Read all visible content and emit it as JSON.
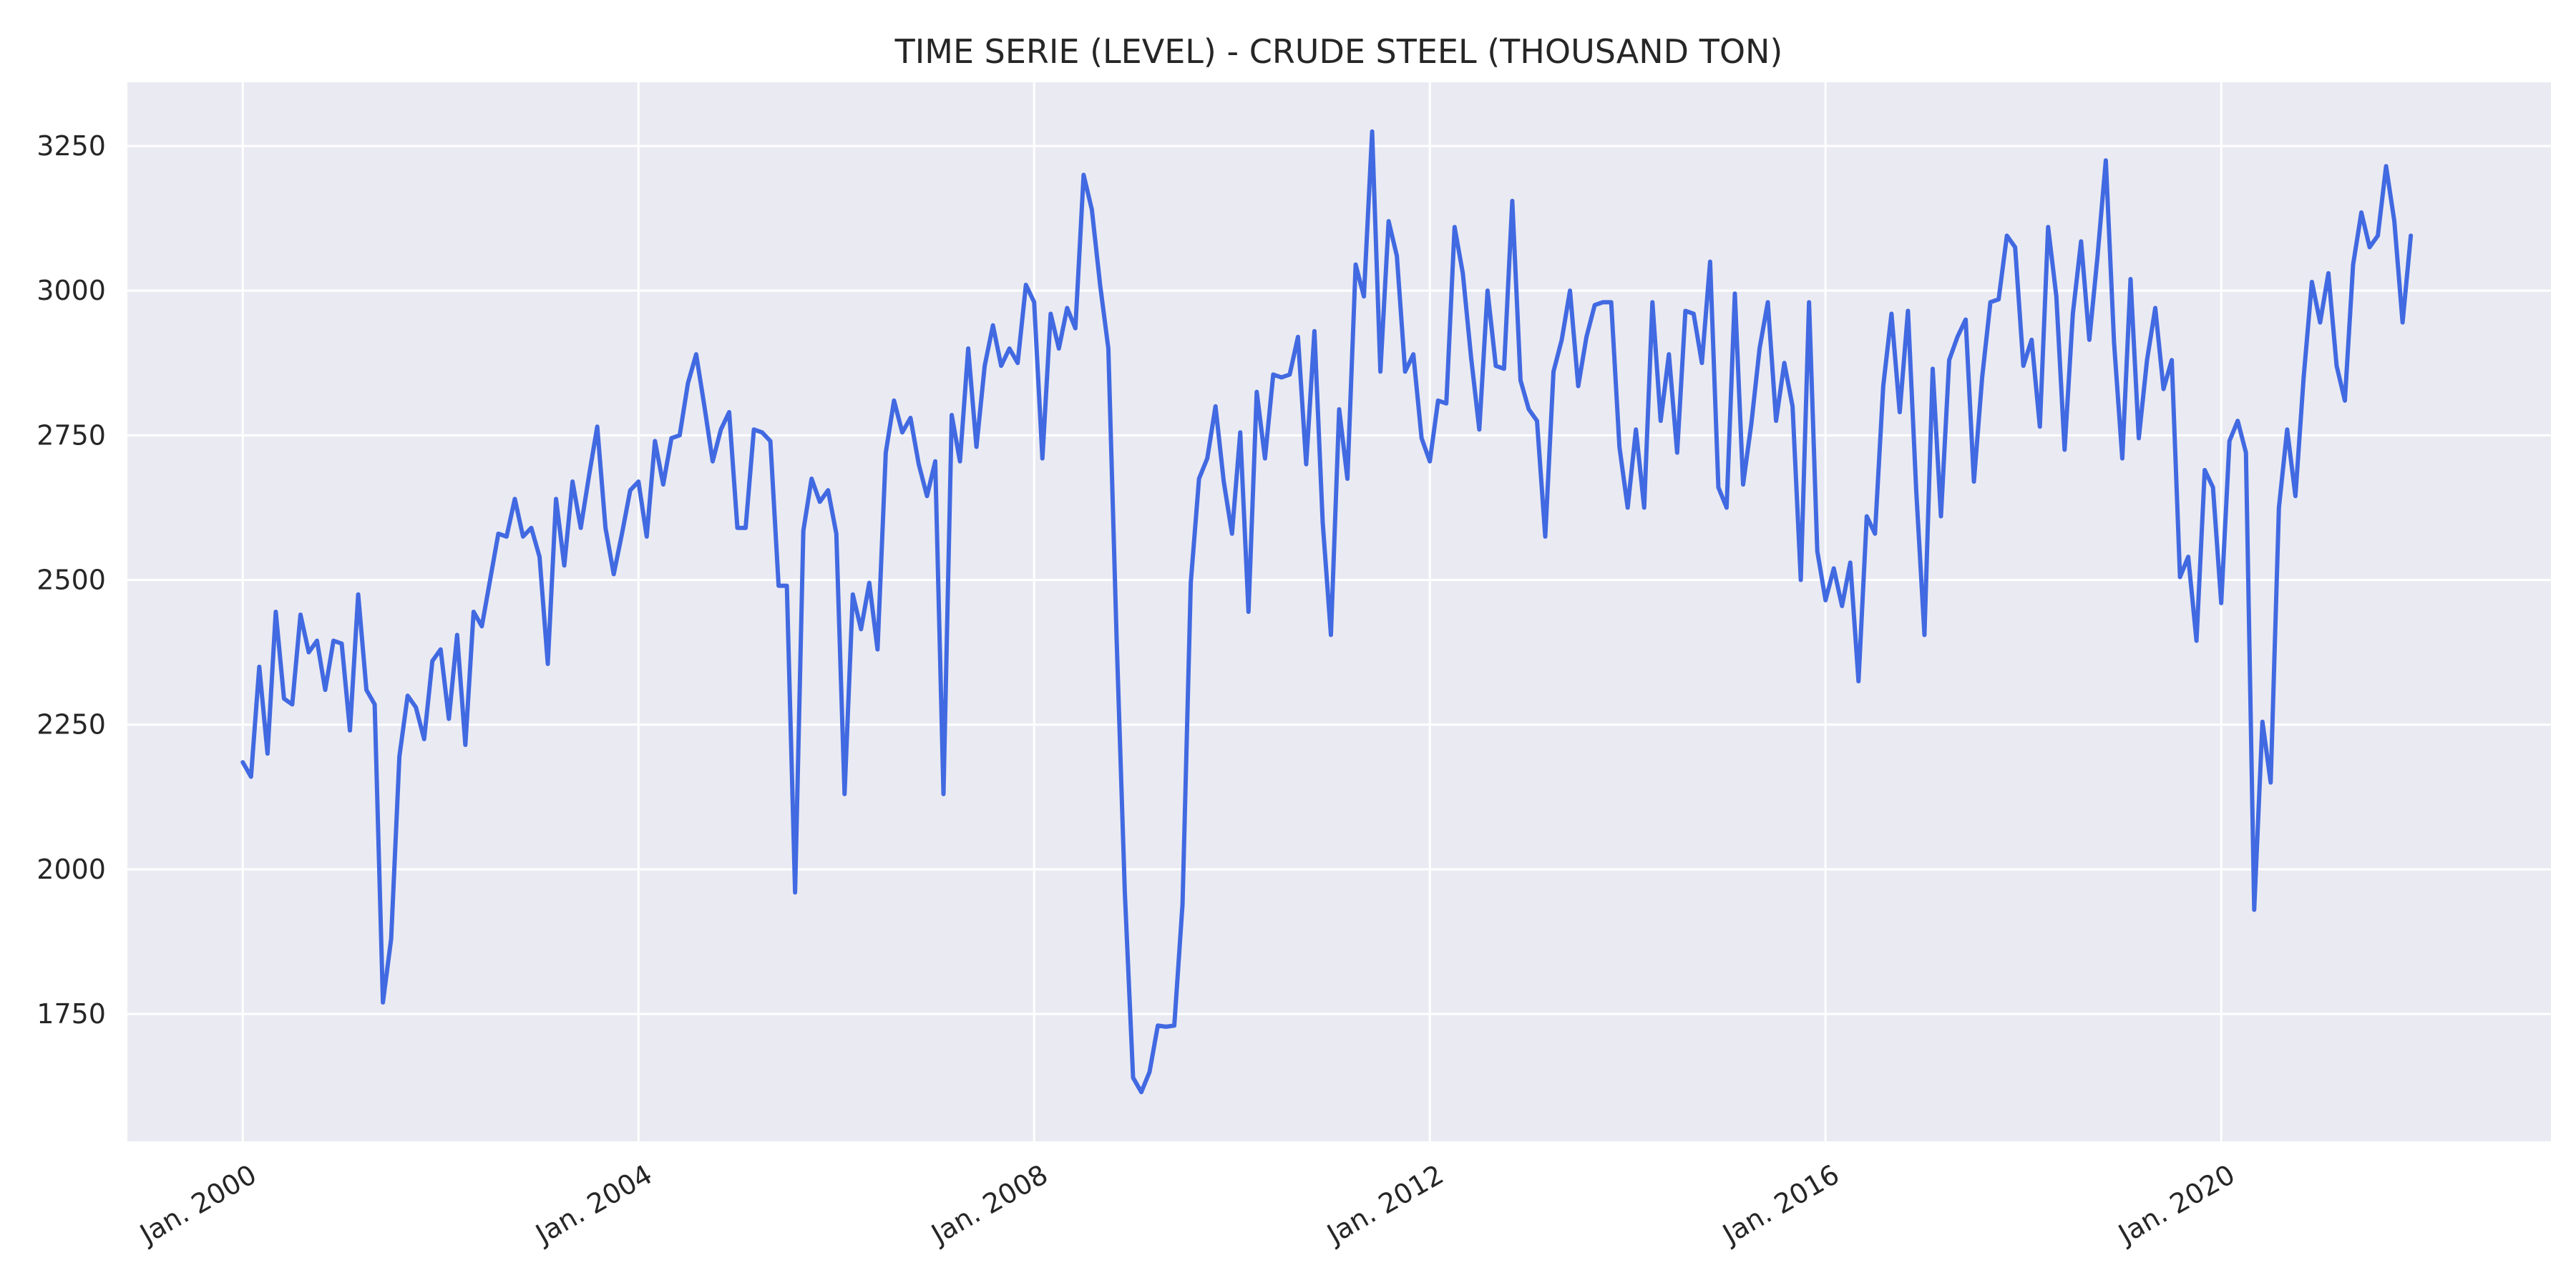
{
  "chart_data": {
    "type": "line",
    "title": "TIME SERIE (LEVEL) - CRUDE STEEL (THOUSAND TON)",
    "xlabel": "",
    "ylabel": "",
    "x_start": "2000-01",
    "x_end": "2021-12",
    "x_frequency": "monthly",
    "xlim": [
      "1998-11",
      "2023-05"
    ],
    "ylim": [
      1530,
      3360
    ],
    "x_ticks": [
      {
        "date": "2000-01",
        "label": "Jan. 2000"
      },
      {
        "date": "2004-01",
        "label": "Jan. 2004"
      },
      {
        "date": "2008-01",
        "label": "Jan. 2008"
      },
      {
        "date": "2012-01",
        "label": "Jan. 2012"
      },
      {
        "date": "2016-01",
        "label": "Jan. 2016"
      },
      {
        "date": "2020-01",
        "label": "Jan. 2020"
      }
    ],
    "y_ticks": [
      1750,
      2000,
      2250,
      2500,
      2750,
      3000,
      3250
    ],
    "grid": true,
    "legend": "none",
    "series_color": "#4169E1",
    "background_color": "#EAEAF2",
    "grid_color": "#FFFFFF",
    "values": [
      2185,
      2160,
      2350,
      2200,
      2445,
      2295,
      2285,
      2440,
      2375,
      2395,
      2310,
      2395,
      2390,
      2240,
      2475,
      2310,
      2285,
      1770,
      1880,
      2195,
      2300,
      2280,
      2225,
      2360,
      2380,
      2260,
      2405,
      2215,
      2445,
      2420,
      2500,
      2580,
      2575,
      2640,
      2575,
      2590,
      2540,
      2355,
      2640,
      2525,
      2670,
      2590,
      2680,
      2765,
      2590,
      2510,
      2580,
      2655,
      2670,
      2575,
      2740,
      2665,
      2745,
      2750,
      2840,
      2890,
      2800,
      2705,
      2760,
      2790,
      2590,
      2590,
      2760,
      2755,
      2740,
      2490,
      2490,
      1960,
      2585,
      2675,
      2635,
      2655,
      2580,
      2130,
      2475,
      2415,
      2495,
      2380,
      2720,
      2810,
      2755,
      2780,
      2700,
      2645,
      2705,
      2130,
      2785,
      2705,
      2900,
      2730,
      2870,
      2940,
      2870,
      2900,
      2875,
      3010,
      2980,
      2710,
      2960,
      2900,
      2970,
      2935,
      3200,
      3140,
      3010,
      2900,
      2400,
      1960,
      1640,
      1615,
      1650,
      1730,
      1728,
      1730,
      1940,
      2495,
      2675,
      2710,
      2800,
      2670,
      2580,
      2755,
      2445,
      2825,
      2710,
      2855,
      2850,
      2855,
      2920,
      2700,
      2930,
      2600,
      2405,
      2795,
      2675,
      3045,
      2990,
      3275,
      2860,
      3120,
      3060,
      2860,
      2890,
      2745,
      2705,
      2810,
      2805,
      3110,
      3030,
      2885,
      2760,
      3000,
      2870,
      2865,
      3155,
      2845,
      2795,
      2775,
      2575,
      2860,
      2915,
      3000,
      2835,
      2920,
      2975,
      2980,
      2980,
      2730,
      2625,
      2760,
      2625,
      2980,
      2775,
      2890,
      2720,
      2965,
      2960,
      2875,
      3050,
      2660,
      2625,
      2995,
      2665,
      2770,
      2900,
      2980,
      2775,
      2875,
      2800,
      2500,
      2980,
      2550,
      2465,
      2520,
      2455,
      2530,
      2325,
      2610,
      2580,
      2835,
      2960,
      2790,
      2965,
      2655,
      2405,
      2865,
      2610,
      2880,
      2920,
      2950,
      2670,
      2850,
      2980,
      2985,
      3095,
      3075,
      2870,
      2915,
      2765,
      3110,
      2990,
      2725,
      2960,
      3085,
      2915,
      3060,
      3225,
      2910,
      2710,
      3020,
      2745,
      2880,
      2970,
      2830,
      2880,
      2505,
      2540,
      2395,
      2690,
      2660,
      2460,
      2740,
      2775,
      2720,
      1930,
      2255,
      2150,
      2625,
      2760,
      2645,
      2850,
      3015,
      2945,
      3030,
      2870,
      2810,
      3045,
      3135,
      3075,
      3095,
      3215,
      3120,
      2945,
      3095
    ]
  }
}
